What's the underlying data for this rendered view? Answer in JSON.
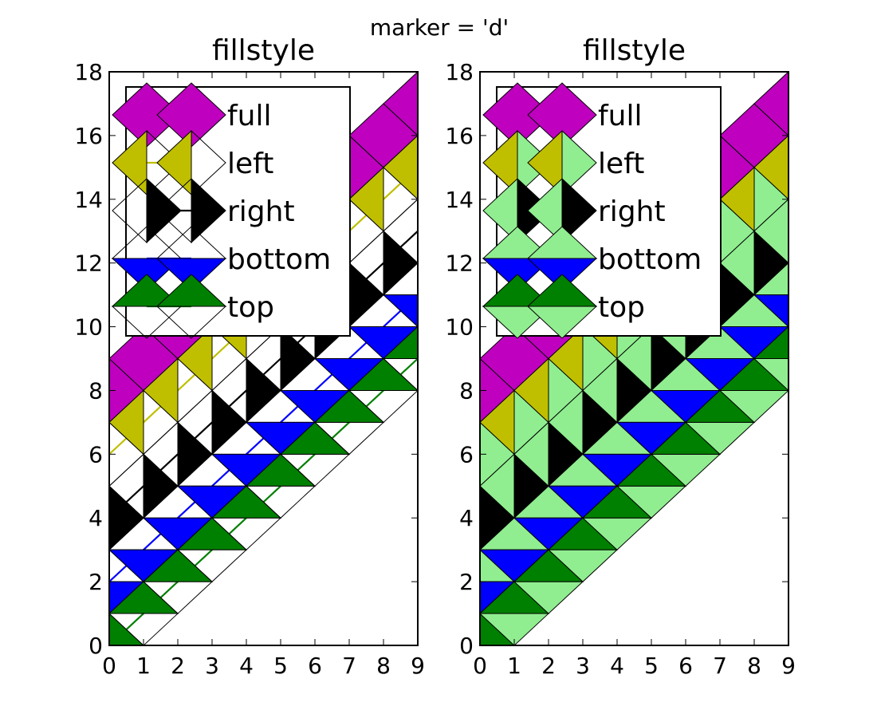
{
  "suptitle": "marker = 'd'",
  "colors": {
    "full": "#bf00bf",
    "left": "#bfbf00",
    "right": "#000000",
    "bottom": "#0000ff",
    "top": "#008000",
    "alt_fill_left_panel": "#ffffff",
    "alt_fill_right_panel": "#90ee90",
    "edge": "#000000"
  },
  "chart_data": [
    {
      "type": "line",
      "title": "fillstyle",
      "marker": "thin_diamond",
      "alt_fill": "none",
      "xlim": [
        0,
        9
      ],
      "ylim": [
        0,
        18
      ],
      "xticks": [
        0,
        1,
        2,
        3,
        4,
        5,
        6,
        7,
        8,
        9
      ],
      "yticks": [
        0,
        2,
        4,
        6,
        8,
        10,
        12,
        14,
        16,
        18
      ],
      "x": [
        0,
        1,
        2,
        3,
        4,
        5,
        6,
        7,
        8,
        9
      ],
      "legend": {
        "placement": "upper-left"
      },
      "series": [
        {
          "name": "full",
          "fillstyle": "full",
          "values": [
            8,
            9,
            10,
            11,
            12,
            13,
            14,
            15,
            16,
            17
          ]
        },
        {
          "name": "left",
          "fillstyle": "left",
          "values": [
            6,
            7,
            8,
            9,
            10,
            11,
            12,
            13,
            14,
            15
          ]
        },
        {
          "name": "right",
          "fillstyle": "right",
          "values": [
            4,
            5,
            6,
            7,
            8,
            9,
            10,
            11,
            12,
            13
          ]
        },
        {
          "name": "bottom",
          "fillstyle": "bottom",
          "values": [
            2,
            3,
            4,
            5,
            6,
            7,
            8,
            9,
            10,
            11
          ]
        },
        {
          "name": "top",
          "fillstyle": "top",
          "values": [
            0,
            1,
            2,
            3,
            4,
            5,
            6,
            7,
            8,
            9
          ]
        }
      ]
    },
    {
      "type": "line",
      "title": "fillstyle",
      "marker": "thin_diamond",
      "alt_fill": "lightgreen",
      "xlim": [
        0,
        9
      ],
      "ylim": [
        0,
        18
      ],
      "xticks": [
        0,
        1,
        2,
        3,
        4,
        5,
        6,
        7,
        8,
        9
      ],
      "yticks": [
        0,
        2,
        4,
        6,
        8,
        10,
        12,
        14,
        16,
        18
      ],
      "x": [
        0,
        1,
        2,
        3,
        4,
        5,
        6,
        7,
        8,
        9
      ],
      "legend": {
        "placement": "upper-left"
      },
      "series": [
        {
          "name": "full",
          "fillstyle": "full",
          "values": [
            8,
            9,
            10,
            11,
            12,
            13,
            14,
            15,
            16,
            17
          ]
        },
        {
          "name": "left",
          "fillstyle": "left",
          "values": [
            6,
            7,
            8,
            9,
            10,
            11,
            12,
            13,
            14,
            15
          ]
        },
        {
          "name": "right",
          "fillstyle": "right",
          "values": [
            4,
            5,
            6,
            7,
            8,
            9,
            10,
            11,
            12,
            13
          ]
        },
        {
          "name": "bottom",
          "fillstyle": "bottom",
          "values": [
            2,
            3,
            4,
            5,
            6,
            7,
            8,
            9,
            10,
            11
          ]
        },
        {
          "name": "top",
          "fillstyle": "top",
          "values": [
            0,
            1,
            2,
            3,
            4,
            5,
            6,
            7,
            8,
            9
          ]
        }
      ]
    }
  ]
}
